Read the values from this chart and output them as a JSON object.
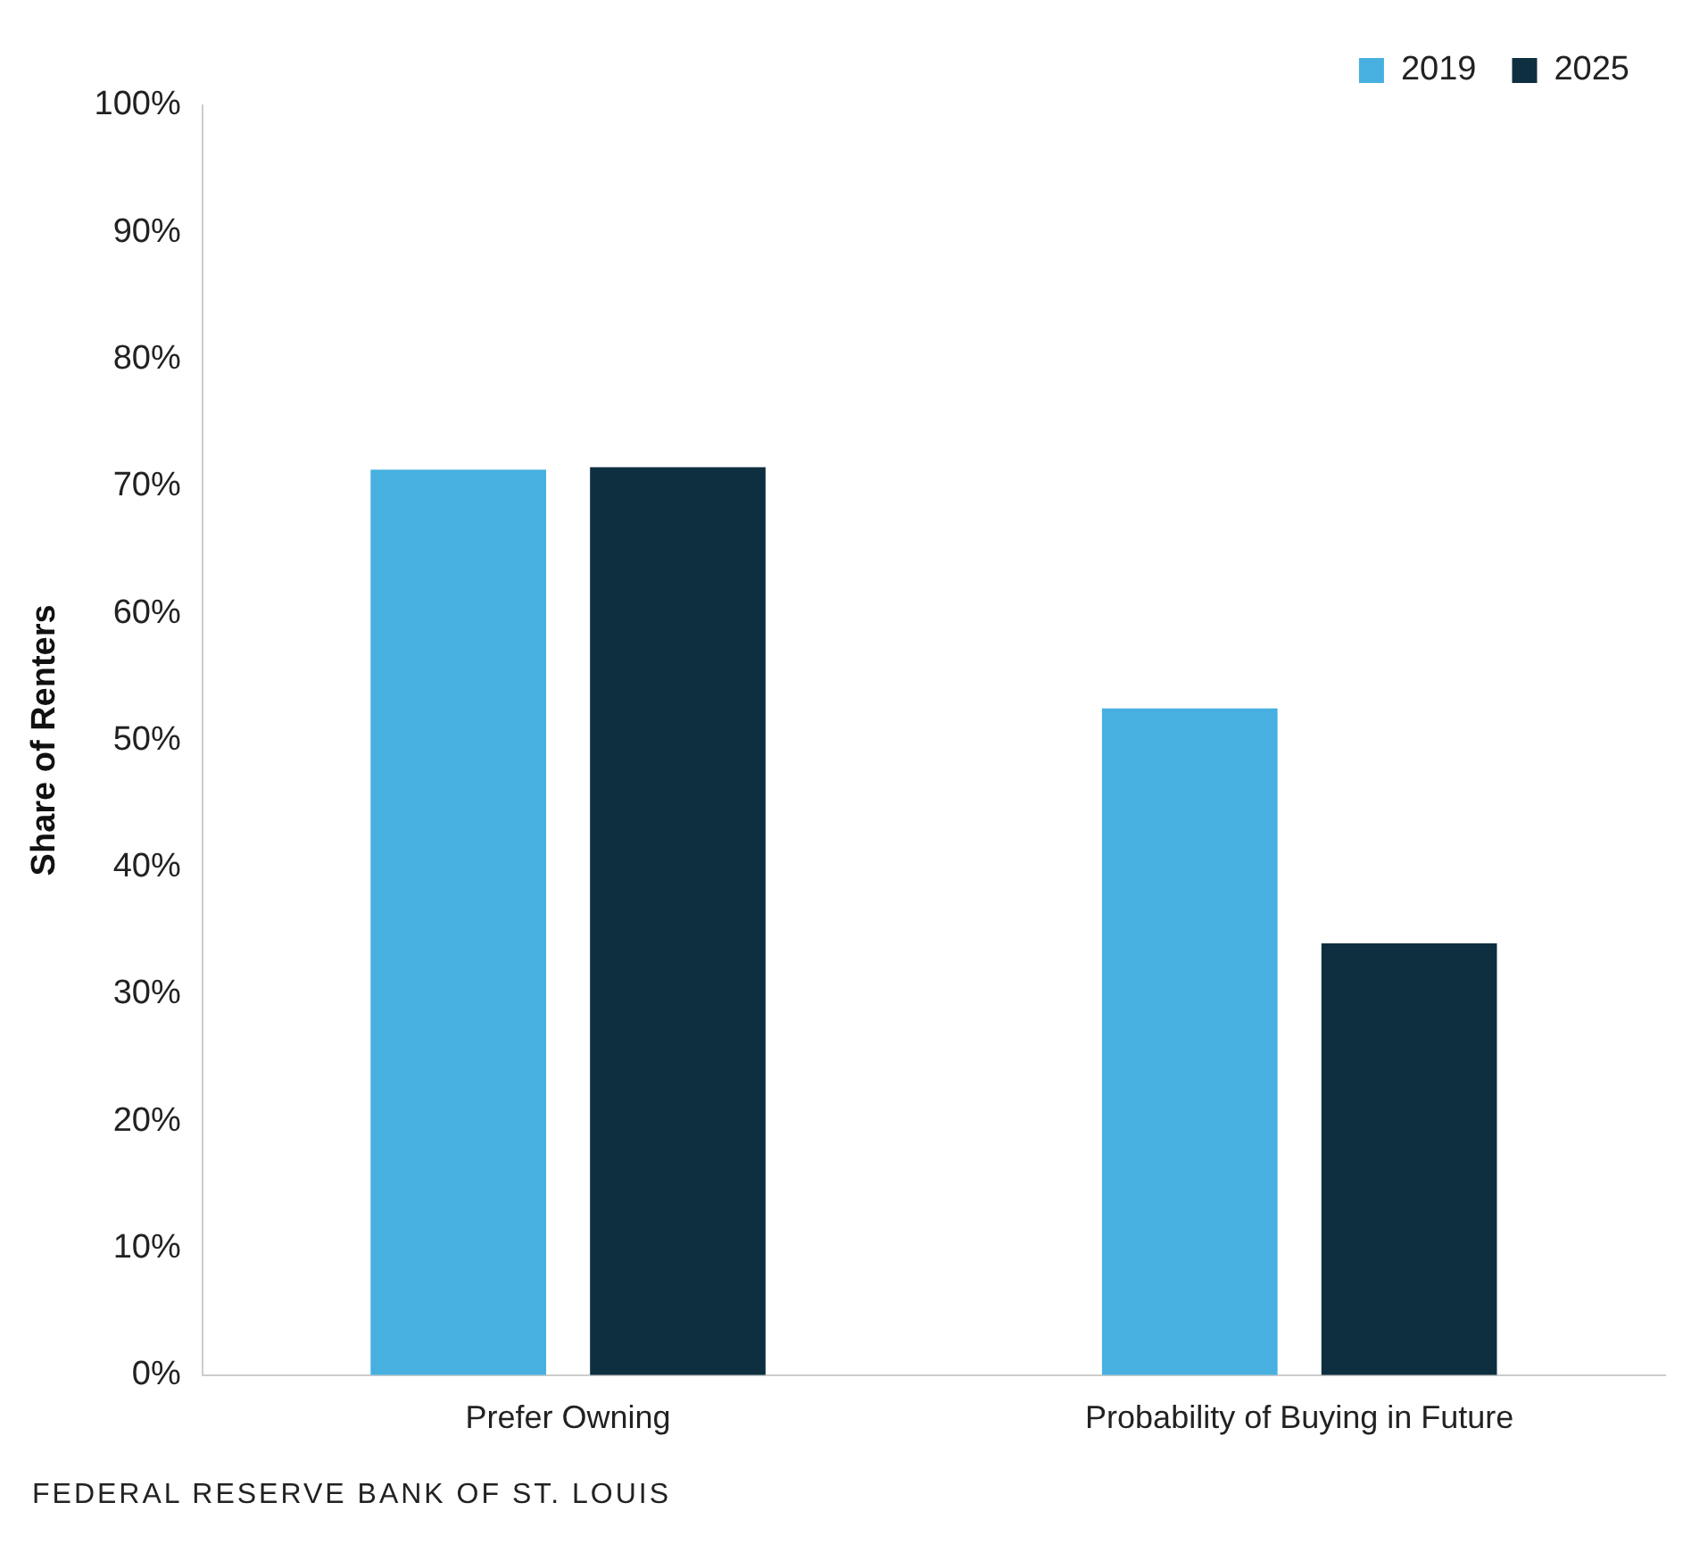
{
  "chart_data": {
    "type": "bar",
    "ylabel": "Share of Renters",
    "categories": [
      "Prefer Owning",
      "Probability of Buying in Future"
    ],
    "series": [
      {
        "name": "2019",
        "color": "#47b0e0",
        "values": [
          71.3,
          52.5
        ]
      },
      {
        "name": "2025",
        "color": "#0d2f40",
        "values": [
          71.5,
          34
        ]
      }
    ],
    "ylim": [
      0,
      100
    ],
    "yticks": [
      {
        "value": 0,
        "label": "0%"
      },
      {
        "value": 10,
        "label": "10%"
      },
      {
        "value": 20,
        "label": "20%"
      },
      {
        "value": 30,
        "label": "30%"
      },
      {
        "value": 40,
        "label": "40%"
      },
      {
        "value": 50,
        "label": "50%"
      },
      {
        "value": 60,
        "label": "60%"
      },
      {
        "value": 70,
        "label": "70%"
      },
      {
        "value": 80,
        "label": "80%"
      },
      {
        "value": 90,
        "label": "90%"
      },
      {
        "value": 100,
        "label": "100%"
      }
    ],
    "grid": false,
    "legend": "top right",
    "annotations": [
      "FEDERAL RESERVE BANK OF ST. LOUIS"
    ]
  }
}
